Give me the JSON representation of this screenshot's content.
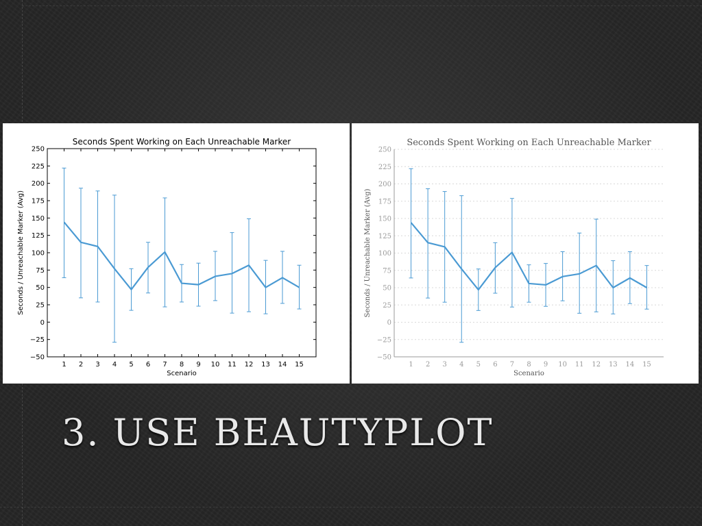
{
  "slide": {
    "title": "3. USE BEAUTYPLOT"
  },
  "colors": {
    "series": "#4a9ad3",
    "beauty_grid": "#d8d8d8",
    "beauty_text": "#999999"
  },
  "chart_data": [
    {
      "type": "line",
      "style": "matplotlib-default",
      "title": "Seconds Spent Working on Each Unreachable Marker",
      "xlabel": "Scenario",
      "ylabel": "Seconds / Unreachable Marker (Avg)",
      "x": [
        1,
        2,
        3,
        4,
        5,
        6,
        7,
        8,
        9,
        10,
        11,
        12,
        13,
        14,
        15
      ],
      "x_tick_labels": [
        "1",
        "2",
        "3",
        "4",
        "5",
        "6",
        "7",
        "8",
        "9",
        "10",
        "11",
        "12",
        "13",
        "14",
        "15"
      ],
      "y_tick_labels": [
        "250",
        "225",
        "200",
        "175",
        "150",
        "125",
        "100",
        "75",
        "50",
        "25",
        "0",
        "−25",
        "−50"
      ],
      "ylim": [
        -50,
        250
      ],
      "xlim": [
        0,
        16
      ],
      "grid": false,
      "series": [
        {
          "values": [
            144,
            115,
            109,
            77,
            47,
            79,
            101,
            56,
            54,
            66,
            70,
            82,
            50,
            64,
            50
          ],
          "err_low": [
            64,
            35,
            29,
            -29,
            17,
            42,
            22,
            29,
            23,
            31,
            13,
            15,
            12,
            27,
            19
          ],
          "err_high": [
            222,
            193,
            189,
            183,
            77,
            115,
            179,
            83,
            85,
            102,
            129,
            149,
            89,
            102,
            82
          ]
        }
      ]
    },
    {
      "type": "line",
      "style": "beautyplot",
      "title": "Seconds Spent Working on Each Unreachable Marker",
      "xlabel": "Scenario",
      "ylabel": "Seconds / Unreachable Marker (Avg)",
      "x": [
        1,
        2,
        3,
        4,
        5,
        6,
        7,
        8,
        9,
        10,
        11,
        12,
        13,
        14,
        15
      ],
      "x_tick_labels": [
        "1",
        "2",
        "3",
        "4",
        "5",
        "6",
        "7",
        "8",
        "9",
        "10",
        "11",
        "12",
        "13",
        "14",
        "15"
      ],
      "y_tick_labels": [
        "250",
        "225",
        "200",
        "175",
        "150",
        "125",
        "100",
        "75",
        "50",
        "25",
        "0",
        "−25",
        "−50"
      ],
      "ylim": [
        -50,
        250
      ],
      "xlim": [
        0,
        16
      ],
      "grid": true,
      "series": [
        {
          "values": [
            144,
            115,
            109,
            77,
            47,
            79,
            101,
            56,
            54,
            66,
            70,
            82,
            50,
            64,
            50
          ],
          "err_low": [
            64,
            35,
            29,
            -29,
            17,
            42,
            22,
            29,
            23,
            31,
            13,
            15,
            12,
            27,
            19
          ],
          "err_high": [
            222,
            193,
            189,
            183,
            77,
            115,
            179,
            83,
            85,
            102,
            129,
            149,
            89,
            102,
            82
          ]
        }
      ]
    }
  ]
}
